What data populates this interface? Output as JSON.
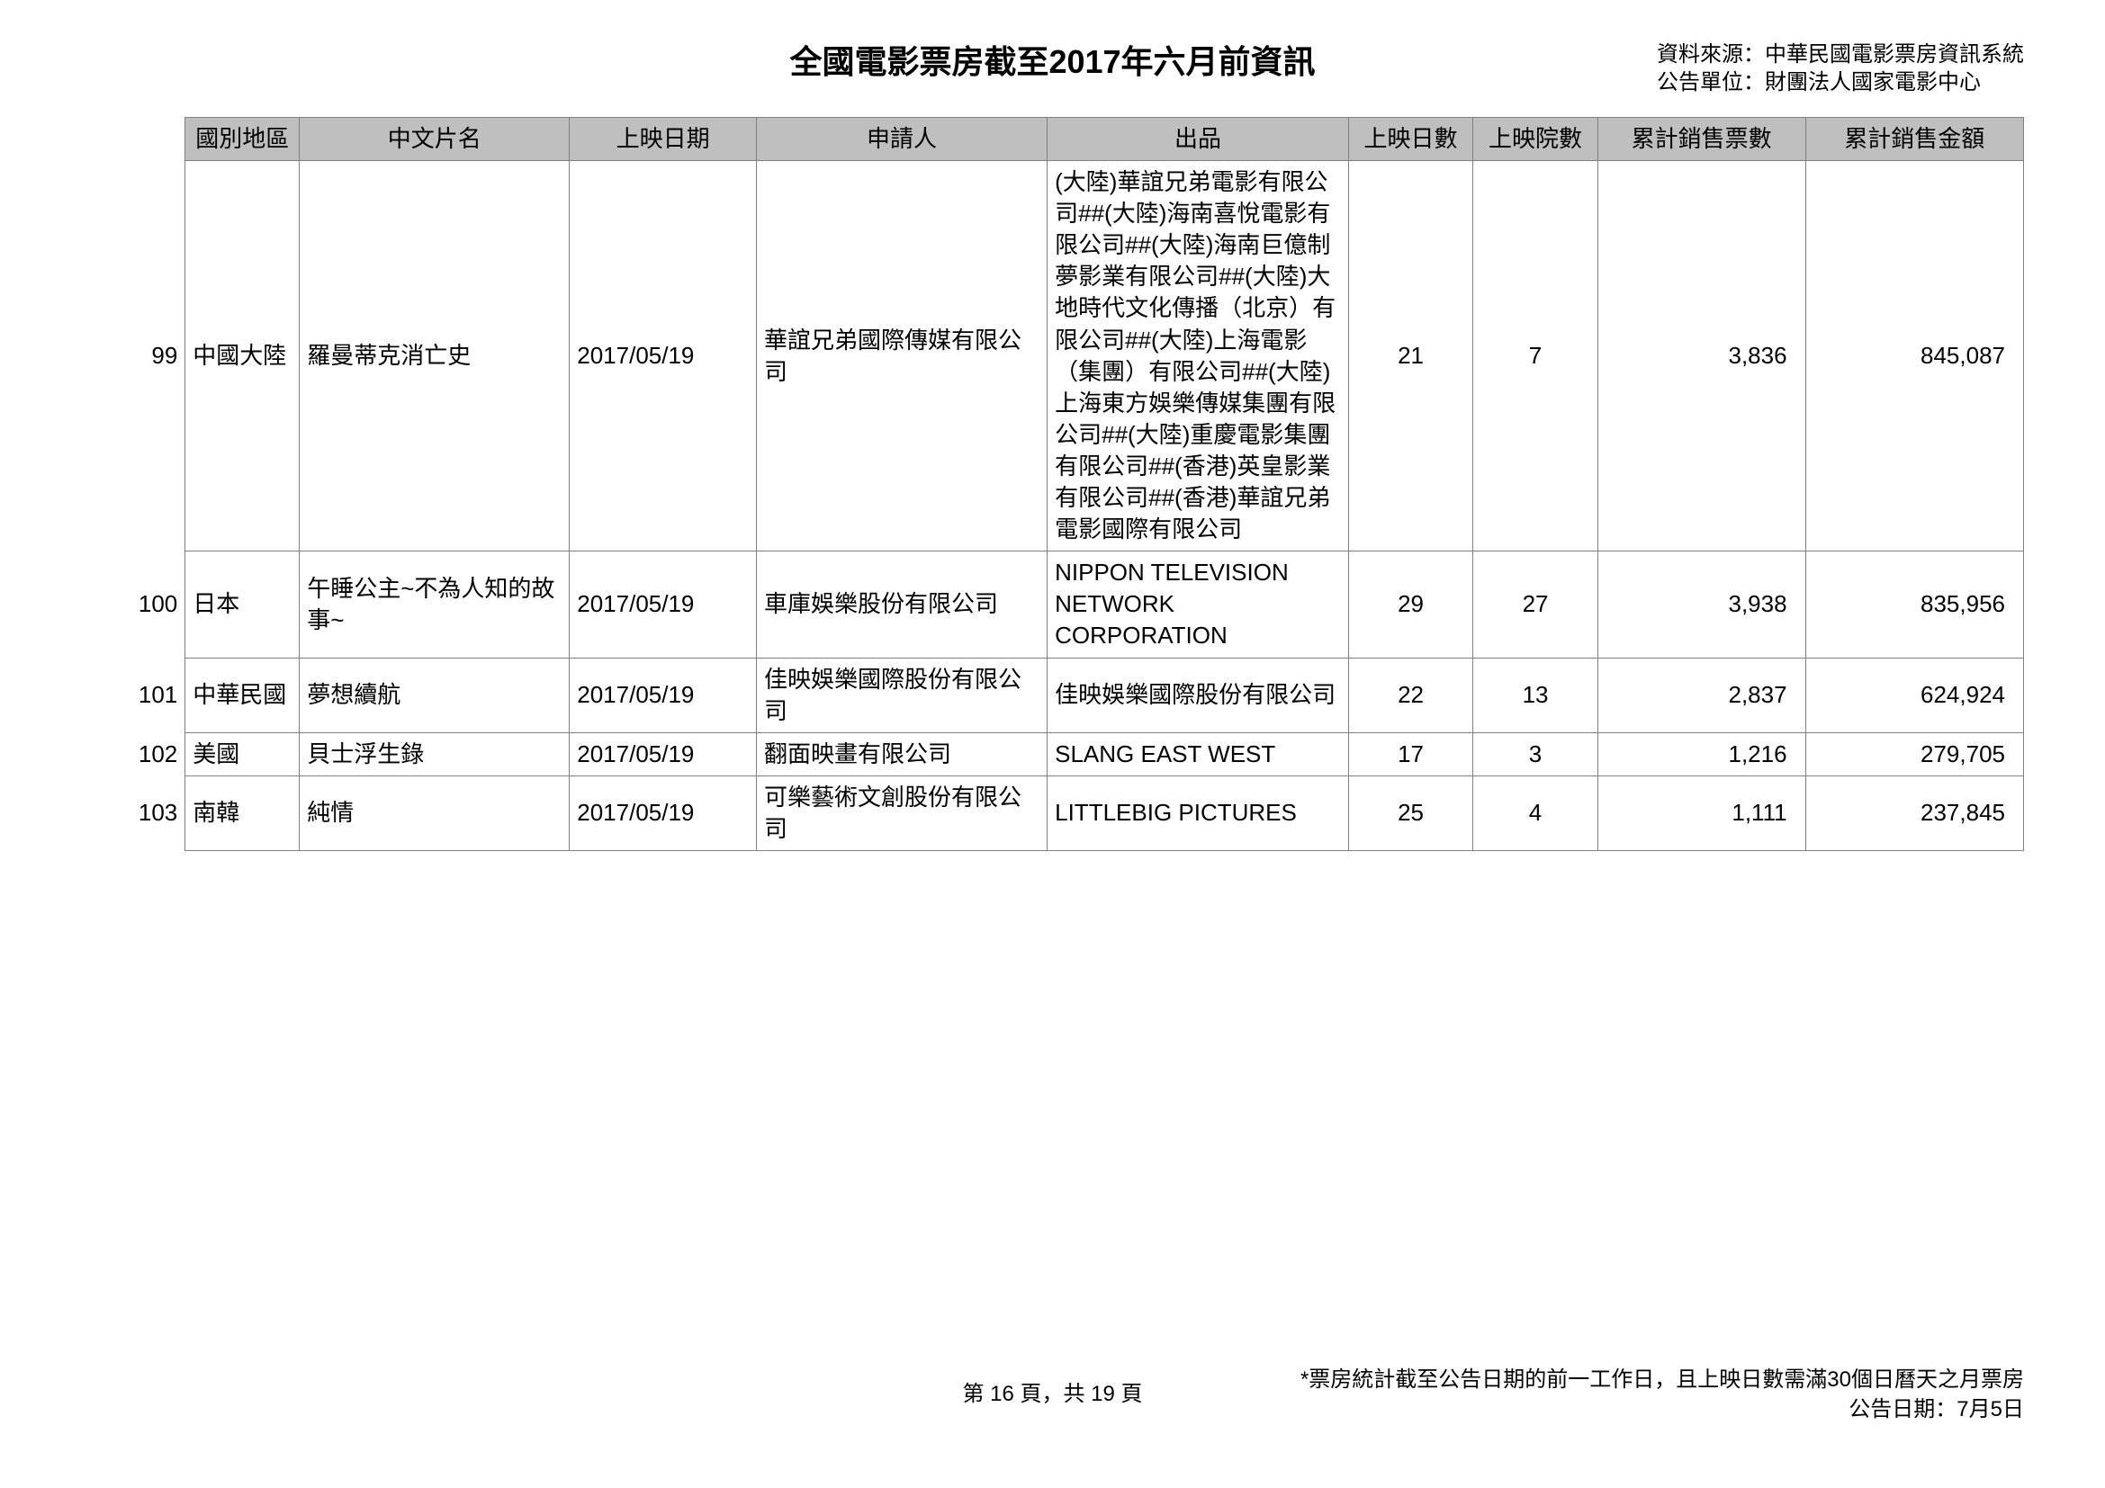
{
  "title": "全國電影票房截至2017年六月前資訊",
  "source": {
    "line1": "資料來源：中華民國電影票房資訊系統",
    "line2": "公告單位：財團法人國家電影中心"
  },
  "table": {
    "headers": {
      "region": "國別地區",
      "name": "中文片名",
      "date": "上映日期",
      "applicant": "申請人",
      "producer": "出品",
      "days": "上映日數",
      "theaters": "上映院數",
      "tickets": "累計銷售票數",
      "revenue": "累計銷售金額"
    },
    "rows": [
      {
        "idx": "99",
        "region": "中國大陸",
        "name": "羅曼蒂克消亡史",
        "date": "2017/05/19",
        "applicant": "華誼兄弟國際傳媒有限公司",
        "producer": "(大陸)華誼兄弟電影有限公司##(大陸)海南喜悅電影有限公司##(大陸)海南巨億制夢影業有限公司##(大陸)大地時代文化傳播（北京）有限公司##(大陸)上海電影（集團）有限公司##(大陸)上海東方娛樂傳媒集團有限公司##(大陸)重慶電影集團有限公司##(香港)英皇影業有限公司##(香港)華誼兄弟電影國際有限公司",
        "days": "21",
        "theaters": "7",
        "tickets": "3,836",
        "revenue": "845,087"
      },
      {
        "idx": "100",
        "region": "日本",
        "name": "午睡公主~不為人知的故事~",
        "date": "2017/05/19",
        "applicant": "車庫娛樂股份有限公司",
        "producer": "NIPPON TELEVISION NETWORK CORPORATION",
        "days": "29",
        "theaters": "27",
        "tickets": "3,938",
        "revenue": "835,956"
      },
      {
        "idx": "101",
        "region": "中華民國",
        "name": "夢想續航",
        "date": "2017/05/19",
        "applicant": "佳映娛樂國際股份有限公司",
        "producer": "佳映娛樂國際股份有限公司",
        "days": "22",
        "theaters": "13",
        "tickets": "2,837",
        "revenue": "624,924"
      },
      {
        "idx": "102",
        "region": "美國",
        "name": "貝士浮生錄",
        "date": "2017/05/19",
        "applicant": "翻面映畫有限公司",
        "producer": "SLANG EAST WEST",
        "days": "17",
        "theaters": "3",
        "tickets": "1,216",
        "revenue": "279,705"
      },
      {
        "idx": "103",
        "region": "南韓",
        "name": "純情",
        "date": "2017/05/19",
        "applicant": "可樂藝術文創股份有限公司",
        "producer": "LITTLEBIG PICTURES",
        "days": "25",
        "theaters": "4",
        "tickets": "1,111",
        "revenue": "237,845"
      }
    ]
  },
  "footer": {
    "page": "第 16 頁，共 19 頁",
    "note1": "*票房統計截至公告日期的前一工作日，且上映日數需滿30個日曆天之月票房",
    "note2": "公告日期：7月5日"
  }
}
